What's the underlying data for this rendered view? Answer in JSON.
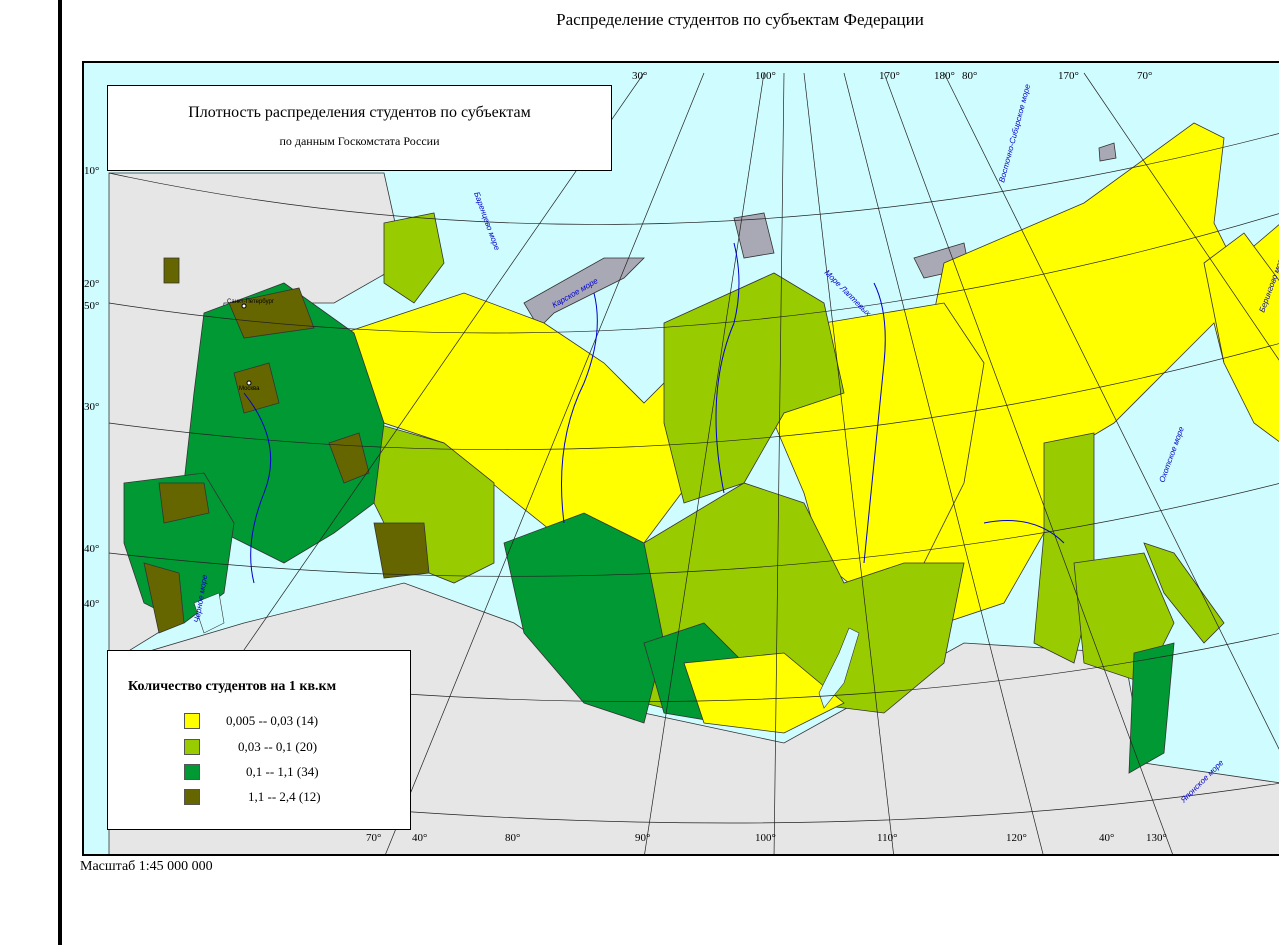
{
  "page_title": "Распределение студентов по субъектам Федерации",
  "map_title": "Плотность распределения студентов по субъектам",
  "map_subtitle": "по данным Госкомстата России",
  "legend": {
    "title": "Количество студентов на 1 кв.км",
    "items": [
      {
        "label": "0,005 -- 0,03 (14)",
        "color": "#ffff00"
      },
      {
        "label": "0,03 -- 0,1 (20)",
        "color": "#99cc00"
      },
      {
        "label": "0,1 -- 1,1 (34)",
        "color": "#009933"
      },
      {
        "label": "1,1 -- 2,4 (12)",
        "color": "#666600"
      }
    ]
  },
  "scale": "Масштаб 1:45 000 000",
  "cities": [
    "Санкт-Петербург",
    "Москва"
  ],
  "seas": [
    "Баренцево море",
    "Карское море",
    "Море Лаптевых",
    "Восточно-Сибирское море",
    "Охотское море",
    "Японское море",
    "Берингово море",
    "Черное море"
  ],
  "coords_top": [
    "30°",
    "100°",
    "170°",
    "180°",
    "80°",
    "170°",
    "70°"
  ],
  "coords_left": [
    "10°",
    "20°",
    "50°",
    "30°",
    "40°",
    "40°"
  ],
  "coords_bottom": [
    "70°",
    "40°",
    "80°",
    "90°",
    "100°",
    "110°",
    "120°",
    "40°",
    "130°"
  ]
}
